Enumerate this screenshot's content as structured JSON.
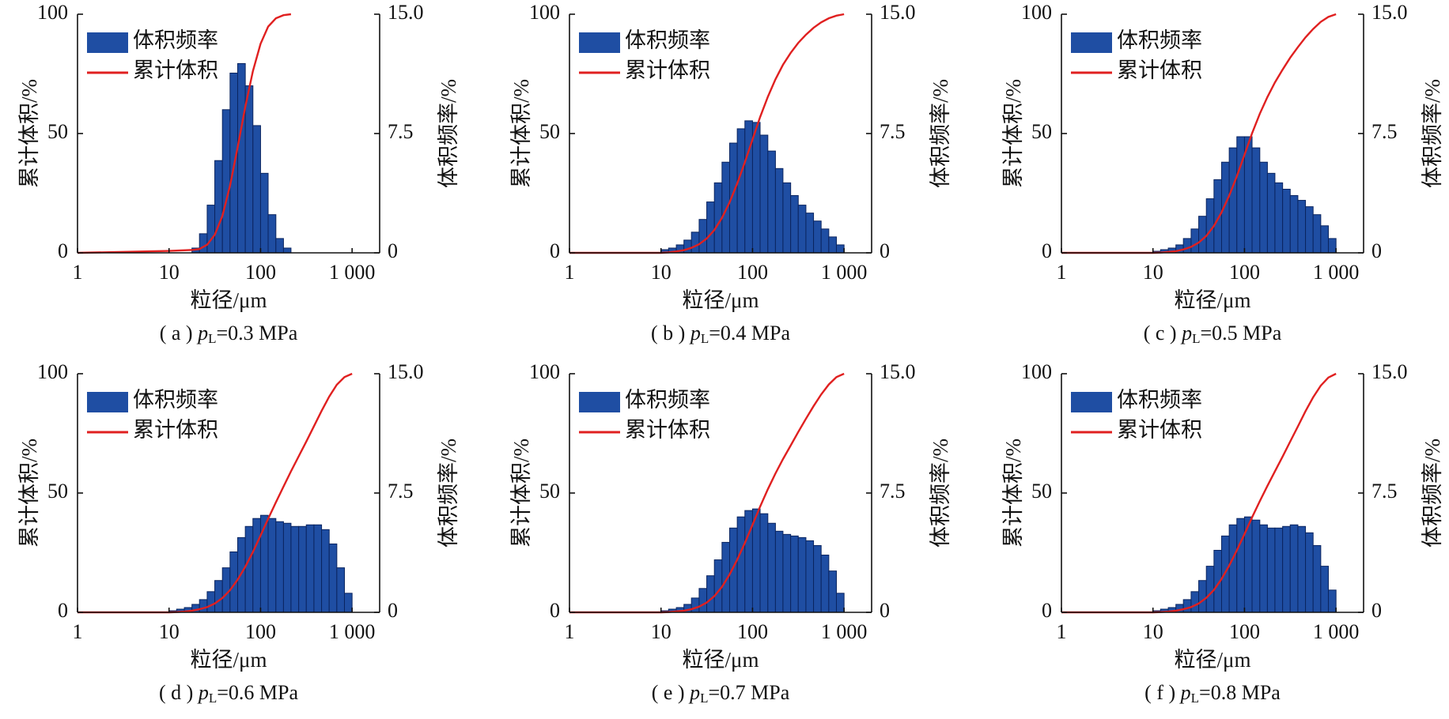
{
  "chart_data": [
    {
      "type": "histogram",
      "caption": {
        "prefix": "( a ) ",
        "var": "p",
        "sub": "L",
        "text": "=0.3 MPa"
      },
      "xlabel": "粒径/μm",
      "ylabel": "累计体积/%",
      "y2label": "体积频率/%",
      "log_x": true,
      "xlim": [
        1,
        2000
      ],
      "xticks": [
        1,
        10,
        100,
        {
          "value": 1000,
          "label": "1 000"
        }
      ],
      "ylim": [
        0,
        100
      ],
      "yticks": [
        0,
        50,
        100
      ],
      "y2lim": [
        0,
        15
      ],
      "y2ticks": [
        0,
        7.5,
        {
          "value": 15,
          "label": "15.0"
        }
      ],
      "series": [
        {
          "name": "体积频率",
          "color": "#1f4ea3",
          "axis": "y2",
          "bins": [
            17.8,
            21.5,
            26.1,
            31.6,
            38.3,
            46.4,
            56.2,
            68.1,
            82.5,
            100,
            121,
            147,
            178,
            215
          ],
          "values": [
            0.3,
            1.2,
            3.0,
            5.8,
            9.0,
            11.3,
            11.9,
            10.5,
            8.0,
            5.0,
            2.4,
            0.9,
            0.3
          ]
        },
        {
          "name": "累计体积",
          "color": "#e02020",
          "x": [
            1,
            10,
            17.8,
            21.5,
            26.1,
            31.6,
            38.3,
            46.4,
            56.2,
            68.1,
            82.5,
            100,
            121,
            147,
            178,
            215
          ],
          "values": [
            0,
            0.8,
            1.2,
            1.6,
            3.4,
            7.6,
            15.5,
            28.2,
            44.3,
            61.2,
            76.2,
            87.6,
            94.8,
            98.3,
            99.6,
            100
          ]
        }
      ]
    },
    {
      "type": "histogram",
      "caption": {
        "prefix": "( b ) ",
        "var": "p",
        "sub": "L",
        "text": "=0.4 MPa"
      },
      "xlabel": "粒径/μm",
      "ylabel": "累计体积/%",
      "y2label": "体积频率/%",
      "log_x": true,
      "xlim": [
        1,
        2000
      ],
      "xticks": [
        1,
        10,
        100,
        {
          "value": 1000,
          "label": "1 000"
        }
      ],
      "ylim": [
        0,
        100
      ],
      "yticks": [
        0,
        50,
        100
      ],
      "y2lim": [
        0,
        15
      ],
      "y2ticks": [
        0,
        7.5,
        {
          "value": 15,
          "label": "15.0"
        }
      ],
      "series": [
        {
          "name": "体积频率",
          "color": "#1f4ea3",
          "axis": "y2",
          "bins": [
            10,
            12.1,
            14.7,
            17.8,
            21.5,
            26.1,
            31.6,
            38.3,
            46.4,
            56.2,
            68.1,
            82.5,
            100,
            121,
            147,
            178,
            215,
            261,
            316,
            383,
            464,
            562,
            681,
            825,
            1000
          ],
          "values": [
            0.2,
            0.3,
            0.5,
            0.8,
            1.3,
            2.1,
            3.2,
            4.4,
            5.7,
            6.9,
            7.8,
            8.3,
            8.2,
            7.4,
            6.4,
            5.3,
            4.4,
            3.6,
            3.0,
            2.5,
            2.0,
            1.5,
            1.0,
            0.5
          ]
        },
        {
          "name": "累计体积",
          "color": "#e02020",
          "x": [
            1,
            10,
            12.1,
            14.7,
            17.8,
            21.5,
            26.1,
            31.6,
            38.3,
            46.4,
            56.2,
            68.1,
            82.5,
            100,
            121,
            147,
            178,
            215,
            261,
            316,
            383,
            464,
            562,
            681,
            825,
            1000
          ],
          "values": [
            0,
            0,
            0.2,
            0.6,
            1.1,
            2.1,
            3.6,
            6.0,
            9.6,
            14.7,
            21.2,
            29.1,
            38.0,
            47.5,
            56.9,
            65.4,
            72.7,
            78.8,
            83.8,
            88.0,
            91.4,
            94.3,
            96.6,
            98.3,
            99.4,
            100
          ]
        }
      ]
    },
    {
      "type": "histogram",
      "caption": {
        "prefix": "( c ) ",
        "var": "p",
        "sub": "L",
        "text": "=0.5 MPa"
      },
      "xlabel": "粒径/μm",
      "ylabel": "累计体积/%",
      "y2label": "体积频率/%",
      "log_x": true,
      "xlim": [
        1,
        2000
      ],
      "xticks": [
        1,
        10,
        100,
        {
          "value": 1000,
          "label": "1 000"
        }
      ],
      "ylim": [
        0,
        100
      ],
      "yticks": [
        0,
        50,
        100
      ],
      "y2lim": [
        0,
        15
      ],
      "y2ticks": [
        0,
        7.5,
        {
          "value": 15,
          "label": "15.0"
        }
      ],
      "series": [
        {
          "name": "体积频率",
          "color": "#1f4ea3",
          "axis": "y2",
          "bins": [
            10,
            12.1,
            14.7,
            17.8,
            21.5,
            26.1,
            31.6,
            38.3,
            46.4,
            56.2,
            68.1,
            82.5,
            100,
            121,
            147,
            178,
            215,
            261,
            316,
            383,
            464,
            562,
            681,
            825,
            1000
          ],
          "values": [
            0.1,
            0.2,
            0.3,
            0.5,
            0.9,
            1.5,
            2.3,
            3.4,
            4.6,
            5.7,
            6.6,
            7.3,
            7.3,
            6.6,
            5.7,
            5.0,
            4.4,
            4.0,
            3.6,
            3.3,
            2.9,
            2.4,
            1.7,
            0.9
          ]
        },
        {
          "name": "累计体积",
          "color": "#e02020",
          "x": [
            1,
            10,
            12.1,
            14.7,
            17.8,
            21.5,
            26.1,
            31.6,
            38.3,
            46.4,
            56.2,
            68.1,
            82.5,
            100,
            121,
            147,
            178,
            215,
            261,
            316,
            383,
            464,
            562,
            681,
            825,
            1000
          ],
          "values": [
            0,
            0,
            0.1,
            0.4,
            0.7,
            1.4,
            2.5,
            4.3,
            7.1,
            11.3,
            17.0,
            24.0,
            32.1,
            41.1,
            50.1,
            58.3,
            65.3,
            71.4,
            76.8,
            81.8,
            86.2,
            90.3,
            93.8,
            96.8,
            98.9,
            100
          ]
        }
      ]
    },
    {
      "type": "histogram",
      "caption": {
        "prefix": "( d ) ",
        "var": "p",
        "sub": "L",
        "text": "=0.6 MPa"
      },
      "xlabel": "粒径/μm",
      "ylabel": "累计体积/%",
      "y2label": "体积频率/%",
      "log_x": true,
      "xlim": [
        1,
        2000
      ],
      "xticks": [
        1,
        10,
        100,
        {
          "value": 1000,
          "label": "1 000"
        }
      ],
      "ylim": [
        0,
        100
      ],
      "yticks": [
        0,
        50,
        100
      ],
      "y2lim": [
        0,
        15
      ],
      "y2ticks": [
        0,
        7.5,
        {
          "value": 15,
          "label": "15.0"
        }
      ],
      "series": [
        {
          "name": "体积频率",
          "color": "#1f4ea3",
          "axis": "y2",
          "bins": [
            10,
            12.1,
            14.7,
            17.8,
            21.5,
            26.1,
            31.6,
            38.3,
            46.4,
            56.2,
            68.1,
            82.5,
            100,
            121,
            147,
            178,
            215,
            261,
            316,
            383,
            464,
            562,
            681,
            825,
            1000
          ],
          "values": [
            0.1,
            0.2,
            0.3,
            0.5,
            0.8,
            1.3,
            2.0,
            2.8,
            3.8,
            4.7,
            5.4,
            5.9,
            6.1,
            5.9,
            5.7,
            5.6,
            5.4,
            5.4,
            5.5,
            5.5,
            5.2,
            4.3,
            2.8,
            1.2
          ]
        },
        {
          "name": "累计体积",
          "color": "#e02020",
          "x": [
            1,
            10,
            12.1,
            14.7,
            17.8,
            21.5,
            26.1,
            31.6,
            38.3,
            46.4,
            56.2,
            68.1,
            82.5,
            100,
            121,
            147,
            178,
            215,
            261,
            316,
            383,
            464,
            562,
            681,
            825,
            1000
          ],
          "values": [
            0,
            0,
            0.1,
            0.3,
            0.7,
            1.3,
            2.2,
            3.7,
            6.0,
            9.3,
            13.7,
            19.1,
            25.3,
            32.2,
            39.2,
            46.1,
            52.7,
            59.1,
            65.4,
            71.6,
            78.0,
            84.4,
            90.4,
            95.4,
            98.6,
            100
          ]
        }
      ]
    },
    {
      "type": "histogram",
      "caption": {
        "prefix": "( e ) ",
        "var": "p",
        "sub": "L",
        "text": "=0.7 MPa"
      },
      "xlabel": "粒径/μm",
      "ylabel": "累计体积/%",
      "y2label": "体积频率/%",
      "log_x": true,
      "xlim": [
        1,
        2000
      ],
      "xticks": [
        1,
        10,
        100,
        {
          "value": 1000,
          "label": "1 000"
        }
      ],
      "ylim": [
        0,
        100
      ],
      "yticks": [
        0,
        50,
        100
      ],
      "y2lim": [
        0,
        15
      ],
      "y2ticks": [
        0,
        7.5,
        {
          "value": 15,
          "label": "15.0"
        }
      ],
      "series": [
        {
          "name": "体积频率",
          "color": "#1f4ea3",
          "axis": "y2",
          "bins": [
            10,
            12.1,
            14.7,
            17.8,
            21.5,
            26.1,
            31.6,
            38.3,
            46.4,
            56.2,
            68.1,
            82.5,
            100,
            121,
            147,
            178,
            215,
            261,
            316,
            383,
            464,
            562,
            681,
            825,
            1000
          ],
          "values": [
            0.1,
            0.2,
            0.3,
            0.5,
            0.9,
            1.5,
            2.3,
            3.3,
            4.4,
            5.3,
            6.0,
            6.4,
            6.5,
            6.2,
            5.6,
            5.1,
            4.9,
            4.8,
            4.7,
            4.5,
            4.2,
            3.6,
            2.6,
            1.2
          ]
        },
        {
          "name": "累计体积",
          "color": "#e02020",
          "x": [
            1,
            10,
            12.1,
            14.7,
            17.8,
            21.5,
            26.1,
            31.6,
            38.3,
            46.4,
            56.2,
            68.1,
            82.5,
            100,
            121,
            147,
            178,
            215,
            261,
            316,
            383,
            464,
            562,
            681,
            825,
            1000
          ],
          "values": [
            0,
            0,
            0.1,
            0.4,
            0.7,
            1.3,
            2.4,
            4.1,
            6.8,
            10.7,
            15.9,
            22.1,
            29.1,
            36.7,
            44.3,
            51.6,
            58.2,
            64.2,
            69.9,
            75.6,
            81.1,
            86.4,
            91.3,
            95.5,
            98.6,
            100
          ]
        }
      ]
    },
    {
      "type": "histogram",
      "caption": {
        "prefix": "( f ) ",
        "var": "p",
        "sub": "L",
        "text": "=0.8 MPa"
      },
      "xlabel": "粒径/μm",
      "ylabel": "累计体积/%",
      "y2label": "体积频率/%",
      "log_x": true,
      "xlim": [
        1,
        2000
      ],
      "xticks": [
        1,
        10,
        100,
        {
          "value": 1000,
          "label": "1 000"
        }
      ],
      "ylim": [
        0,
        100
      ],
      "yticks": [
        0,
        50,
        100
      ],
      "y2lim": [
        0,
        15
      ],
      "y2ticks": [
        0,
        7.5,
        {
          "value": 15,
          "label": "15.0"
        }
      ],
      "series": [
        {
          "name": "体积频率",
          "color": "#1f4ea3",
          "axis": "y2",
          "bins": [
            10,
            12.1,
            14.7,
            17.8,
            21.5,
            26.1,
            31.6,
            38.3,
            46.4,
            56.2,
            68.1,
            82.5,
            100,
            121,
            147,
            178,
            215,
            261,
            316,
            383,
            464,
            562,
            681,
            825,
            1000
          ],
          "values": [
            0.1,
            0.2,
            0.3,
            0.5,
            0.8,
            1.3,
            2.0,
            2.9,
            3.9,
            4.8,
            5.5,
            5.9,
            6.0,
            5.8,
            5.5,
            5.3,
            5.3,
            5.4,
            5.5,
            5.4,
            5.0,
            4.2,
            2.9,
            1.4
          ]
        },
        {
          "name": "累计体积",
          "color": "#e02020",
          "x": [
            1,
            10,
            12.1,
            14.7,
            17.8,
            21.5,
            26.1,
            31.6,
            38.3,
            46.4,
            56.2,
            68.1,
            82.5,
            100,
            121,
            147,
            178,
            215,
            261,
            316,
            383,
            464,
            562,
            681,
            825,
            1000
          ],
          "values": [
            0,
            0,
            0.1,
            0.3,
            0.7,
            1.3,
            2.2,
            3.7,
            6.1,
            9.4,
            14.0,
            19.6,
            26.0,
            32.8,
            39.8,
            46.6,
            53.0,
            59.1,
            65.3,
            71.6,
            77.9,
            84.3,
            90.1,
            95.0,
            98.4,
            100
          ]
        }
      ]
    }
  ]
}
